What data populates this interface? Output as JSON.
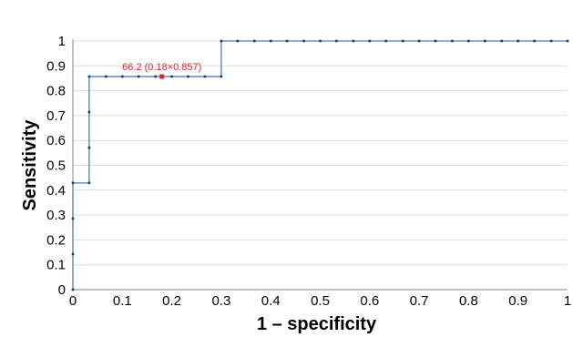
{
  "chart_data": {
    "type": "line",
    "title": "",
    "xlabel": "1 – specificity",
    "ylabel": "Sensitivity",
    "xlim": [
      0,
      1
    ],
    "ylim": [
      0,
      1
    ],
    "x_ticks": [
      "0",
      "0.1",
      "0.2",
      "0.3",
      "0.4",
      "0.5",
      "0.6",
      "0.7",
      "0.8",
      "0.9",
      "1"
    ],
    "y_ticks": [
      "0",
      "0.1",
      "0.2",
      "0.3",
      "0.4",
      "0.5",
      "0.6",
      "0.7",
      "0.8",
      "0.9",
      "1"
    ],
    "grid": "horizontal",
    "step": true,
    "series": [
      {
        "color": "#4a7ebb",
        "marker_color": "#1f3864",
        "points": [
          [
            0,
            0
          ],
          [
            0,
            0.143
          ],
          [
            0,
            0.286
          ],
          [
            0,
            0.429
          ],
          [
            0.033,
            0.429
          ],
          [
            0.033,
            0.571
          ],
          [
            0.033,
            0.714
          ],
          [
            0.033,
            0.857
          ],
          [
            0.067,
            0.857
          ],
          [
            0.1,
            0.857
          ],
          [
            0.133,
            0.857
          ],
          [
            0.167,
            0.857
          ],
          [
            0.2,
            0.857
          ],
          [
            0.233,
            0.857
          ],
          [
            0.267,
            0.857
          ],
          [
            0.3,
            0.857
          ],
          [
            0.3,
            1
          ],
          [
            0.333,
            1
          ],
          [
            0.367,
            1
          ],
          [
            0.4,
            1
          ],
          [
            0.433,
            1
          ],
          [
            0.467,
            1
          ],
          [
            0.5,
            1
          ],
          [
            0.533,
            1
          ],
          [
            0.567,
            1
          ],
          [
            0.6,
            1
          ],
          [
            0.633,
            1
          ],
          [
            0.667,
            1
          ],
          [
            0.7,
            1
          ],
          [
            0.733,
            1
          ],
          [
            0.767,
            1
          ],
          [
            0.8,
            1
          ],
          [
            0.833,
            1
          ],
          [
            0.867,
            1
          ],
          [
            0.9,
            1
          ],
          [
            0.933,
            1
          ],
          [
            0.967,
            1
          ],
          [
            1,
            1
          ]
        ]
      }
    ],
    "annotations": [
      {
        "text": "66.2 (0.18×0.857)",
        "x": 0.18,
        "y": 0.857,
        "color": "#d62728"
      }
    ]
  }
}
